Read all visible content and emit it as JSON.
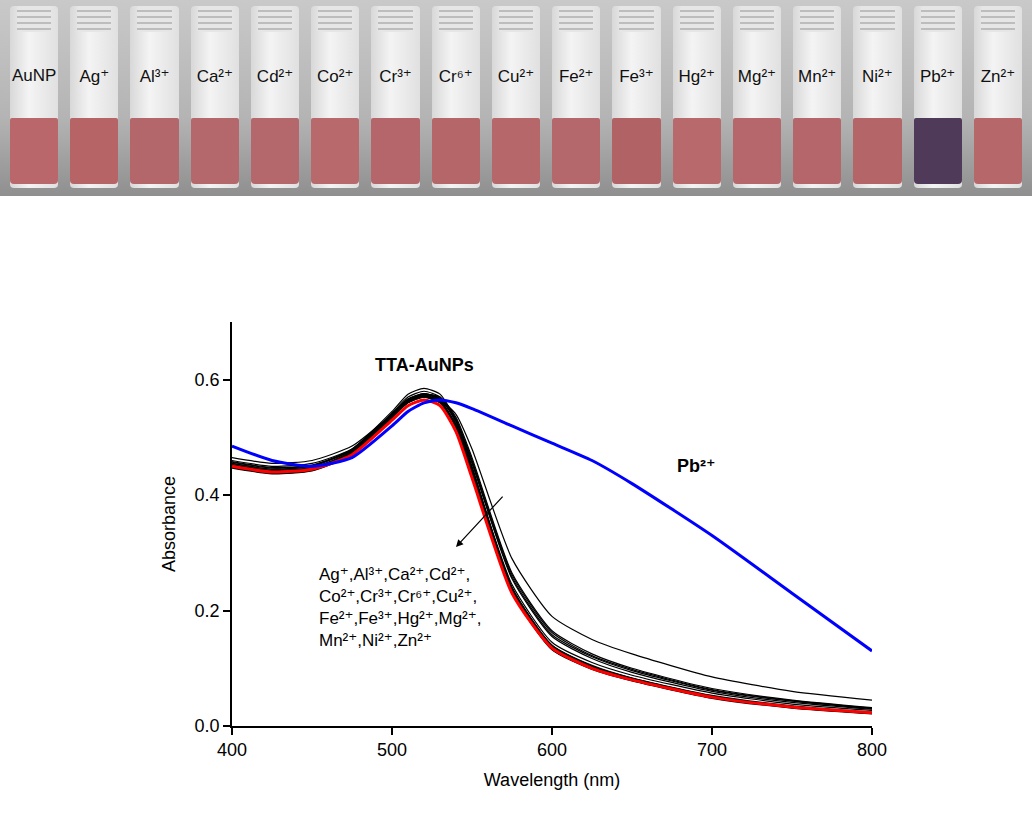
{
  "photo": {
    "labels": [
      "AuNP",
      "Ag⁺",
      "Al³⁺",
      "Ca²⁺",
      "Cd²⁺",
      "Co²⁺",
      "Cr³⁺",
      "Cr⁶⁺",
      "Cu²⁺",
      "Fe²⁺",
      "Fe³⁺",
      "Hg²⁺",
      "Mg²⁺",
      "Mn²⁺",
      "Ni²⁺",
      "Pb²⁺",
      "Zn²⁺"
    ],
    "colors": [
      "#b9676b",
      "#b66466",
      "#b3676a",
      "#b4686b",
      "#b5686c",
      "#b7696c",
      "#b4666a",
      "#b46669",
      "#b6676a",
      "#b4686b",
      "#b16264",
      "#b7696c",
      "#b5676b",
      "#b4666a",
      "#b46568",
      "#4f3a5a",
      "#b5676a"
    ]
  },
  "chart_data": {
    "type": "line",
    "x_label": "Wavelength (nm)",
    "y_label": "Absorbance",
    "xlim": [
      400,
      800
    ],
    "xticks": [
      400,
      500,
      600,
      700,
      800
    ],
    "ylim": [
      0,
      0.7
    ],
    "yticks": [
      {
        "value": 0,
        "label": "0.0"
      },
      {
        "value": 0.2,
        "label": "0.2"
      },
      {
        "value": 0.4,
        "label": "0.4"
      },
      {
        "value": 0.6,
        "label": "0.6"
      }
    ],
    "grid": false,
    "annotations": [
      "TTA-AuNPs",
      "Pb²⁺",
      "Ag⁺,Al³⁺,Ca²⁺,Cd²⁺,\nCo²⁺,Cr³⁺,Cr⁶⁺,Cu²⁺,\nFe²⁺,Fe³⁺,Hg²⁺,Mg²⁺,\nMn²⁺,Ni²⁺,Zn²⁺"
    ],
    "x": [
      400,
      425,
      450,
      475,
      500,
      510,
      520,
      530,
      540,
      550,
      575,
      600,
      625,
      650,
      700,
      750,
      800
    ],
    "series": [
      {
        "name": "Ag⁺",
        "color": "#000000",
        "values": [
          0.45,
          0.44,
          0.445,
          0.475,
          0.54,
          0.565,
          0.575,
          0.565,
          0.52,
          0.44,
          0.235,
          0.135,
          0.1,
          0.08,
          0.05,
          0.033,
          0.022
        ]
      },
      {
        "name": "Al³⁺",
        "color": "#000000",
        "values": [
          0.455,
          0.445,
          0.45,
          0.48,
          0.545,
          0.575,
          0.585,
          0.575,
          0.53,
          0.45,
          0.24,
          0.14,
          0.105,
          0.083,
          0.052,
          0.034,
          0.023
        ]
      },
      {
        "name": "Ca²⁺",
        "color": "#000000",
        "values": [
          0.46,
          0.45,
          0.455,
          0.48,
          0.54,
          0.565,
          0.575,
          0.57,
          0.535,
          0.465,
          0.265,
          0.165,
          0.125,
          0.1,
          0.065,
          0.045,
          0.032
        ]
      },
      {
        "name": "Cd²⁺",
        "color": "#000000",
        "values": [
          0.465,
          0.455,
          0.46,
          0.485,
          0.54,
          0.565,
          0.57,
          0.565,
          0.54,
          0.48,
          0.29,
          0.19,
          0.15,
          0.125,
          0.085,
          0.06,
          0.045
        ]
      },
      {
        "name": "Co²⁺",
        "color": "#000000",
        "values": [
          0.45,
          0.44,
          0.445,
          0.47,
          0.535,
          0.56,
          0.57,
          0.56,
          0.52,
          0.445,
          0.245,
          0.145,
          0.11,
          0.088,
          0.057,
          0.038,
          0.027
        ]
      },
      {
        "name": "Cr³⁺",
        "color": "#000000",
        "values": [
          0.452,
          0.442,
          0.447,
          0.474,
          0.538,
          0.563,
          0.573,
          0.563,
          0.522,
          0.446,
          0.24,
          0.14,
          0.104,
          0.083,
          0.053,
          0.035,
          0.024
        ]
      },
      {
        "name": "Cr⁶⁺",
        "color": "#000000",
        "values": [
          0.448,
          0.438,
          0.443,
          0.471,
          0.536,
          0.562,
          0.572,
          0.562,
          0.518,
          0.438,
          0.232,
          0.133,
          0.099,
          0.079,
          0.049,
          0.032,
          0.022
        ]
      },
      {
        "name": "Cu²⁺",
        "color": "#000000",
        "values": [
          0.455,
          0.445,
          0.45,
          0.478,
          0.54,
          0.566,
          0.576,
          0.567,
          0.528,
          0.455,
          0.255,
          0.155,
          0.117,
          0.093,
          0.06,
          0.041,
          0.029
        ]
      },
      {
        "name": "Fe²⁺",
        "color": "#000000",
        "values": [
          0.447,
          0.437,
          0.442,
          0.47,
          0.534,
          0.56,
          0.57,
          0.56,
          0.517,
          0.437,
          0.231,
          0.132,
          0.098,
          0.078,
          0.048,
          0.031,
          0.021
        ]
      },
      {
        "name": "Fe³⁺",
        "color": "#000000",
        "values": [
          0.458,
          0.448,
          0.452,
          0.479,
          0.54,
          0.565,
          0.574,
          0.566,
          0.53,
          0.458,
          0.258,
          0.158,
          0.12,
          0.096,
          0.062,
          0.043,
          0.03
        ]
      },
      {
        "name": "Hg²⁺",
        "color": "#000000",
        "values": [
          0.451,
          0.441,
          0.446,
          0.473,
          0.537,
          0.562,
          0.572,
          0.562,
          0.52,
          0.443,
          0.238,
          0.138,
          0.102,
          0.082,
          0.051,
          0.034,
          0.023
        ]
      },
      {
        "name": "Mg²⁺",
        "color": "#000000",
        "values": [
          0.453,
          0.443,
          0.448,
          0.476,
          0.542,
          0.57,
          0.58,
          0.57,
          0.525,
          0.447,
          0.238,
          0.137,
          0.102,
          0.081,
          0.051,
          0.033,
          0.023
        ]
      },
      {
        "name": "Mn²⁺",
        "color": "#000000",
        "values": [
          0.449,
          0.439,
          0.444,
          0.472,
          0.537,
          0.563,
          0.573,
          0.563,
          0.519,
          0.44,
          0.234,
          0.134,
          0.1,
          0.079,
          0.05,
          0.032,
          0.022
        ]
      },
      {
        "name": "Ni²⁺",
        "color": "#000000",
        "values": [
          0.457,
          0.447,
          0.451,
          0.478,
          0.541,
          0.567,
          0.576,
          0.568,
          0.532,
          0.461,
          0.262,
          0.162,
          0.122,
          0.098,
          0.063,
          0.044,
          0.031
        ]
      },
      {
        "name": "Zn²⁺",
        "color": "#000000",
        "values": [
          0.45,
          0.44,
          0.445,
          0.472,
          0.536,
          0.561,
          0.571,
          0.561,
          0.519,
          0.441,
          0.236,
          0.136,
          0.101,
          0.081,
          0.05,
          0.033,
          0.022
        ]
      },
      {
        "name": "TTA-AuNPs",
        "color": "#ff0000",
        "values": [
          0.45,
          0.44,
          0.445,
          0.47,
          0.53,
          0.555,
          0.565,
          0.555,
          0.51,
          0.43,
          0.23,
          0.135,
          0.1,
          0.08,
          0.05,
          0.033,
          0.023
        ]
      },
      {
        "name": "Pb²⁺",
        "color": "#0000ff",
        "values": [
          0.485,
          0.46,
          0.45,
          0.465,
          0.52,
          0.545,
          0.56,
          0.565,
          0.56,
          0.55,
          0.52,
          0.49,
          0.46,
          0.42,
          0.33,
          0.23,
          0.13
        ]
      }
    ]
  }
}
